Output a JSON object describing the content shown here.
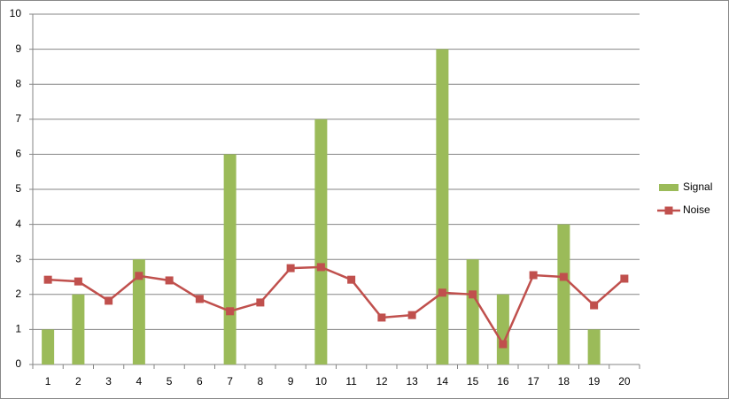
{
  "chart_data": {
    "type": "bar_line",
    "categories": [
      "1",
      "2",
      "3",
      "4",
      "5",
      "6",
      "7",
      "8",
      "9",
      "10",
      "11",
      "12",
      "13",
      "14",
      "15",
      "16",
      "17",
      "18",
      "19",
      "20"
    ],
    "series": [
      {
        "name": "Signal",
        "type": "bar",
        "color": "#9bbb59",
        "values": [
          1,
          2,
          0,
          3,
          0,
          0,
          6,
          0,
          0,
          7,
          0,
          0,
          0,
          9,
          3,
          2,
          0,
          4,
          1,
          0
        ]
      },
      {
        "name": "Noise",
        "type": "line",
        "color": "#c0504d",
        "values": [
          2.42,
          2.37,
          1.82,
          2.53,
          2.4,
          1.87,
          1.52,
          1.77,
          2.75,
          2.78,
          2.42,
          1.34,
          1.41,
          2.05,
          2.0,
          0.58,
          2.55,
          2.5,
          1.69,
          2.45
        ]
      }
    ],
    "ylim": [
      0,
      10
    ],
    "yticks": [
      0,
      1,
      2,
      3,
      4,
      5,
      6,
      7,
      8,
      9,
      10
    ],
    "grid": true,
    "legend": "right"
  }
}
